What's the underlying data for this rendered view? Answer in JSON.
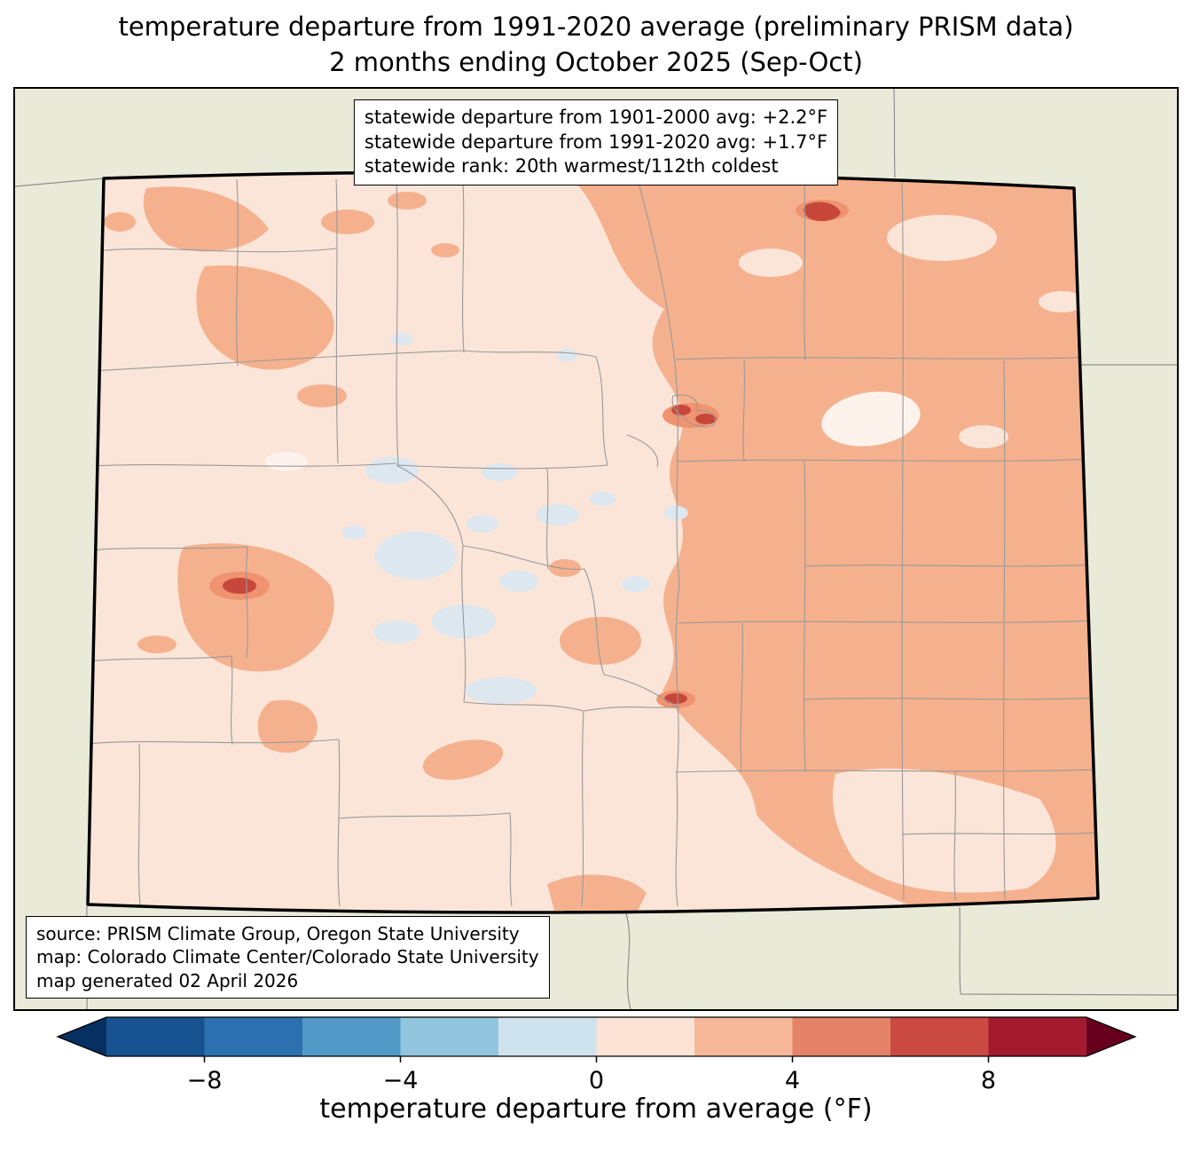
{
  "title": {
    "line1": "temperature departure from 1991-2020 average (preliminary PRISM data)",
    "line2": "2 months ending October 2025 (Sep-Oct)"
  },
  "stats_box": {
    "lines": [
      "statewide departure from 1901-2000 avg: +2.2°F",
      "statewide departure from 1991-2020 avg: +1.7°F",
      "statewide rank: 20th warmest/112th coldest"
    ]
  },
  "source_box": {
    "lines": [
      "source: PRISM Climate Group, Oregon State University",
      "map: Colorado Climate Center/Colorado State University",
      "map generated 02 April 2026"
    ]
  },
  "colorbar": {
    "label": "temperature departure from average (°F)",
    "ticks": [
      "−8",
      "−4",
      "0",
      "4",
      "8"
    ],
    "tick_values": [
      -8,
      -4,
      0,
      4,
      8
    ],
    "range": [
      -10,
      10
    ],
    "segment_colors": [
      "#175290",
      "#2d70b0",
      "#5199c6",
      "#92c5de",
      "#cfe3ef",
      "#fbe3d6",
      "#f7b799",
      "#e58368",
      "#cb4a42",
      "#a31a2e"
    ],
    "arrow_left_color": "#053061",
    "arrow_right_color": "#67001f"
  },
  "map": {
    "region": "Colorado",
    "description": "PRISM temperature anomaly choropleth with county boundaries; mostly +0 to +2°F statewide, +2 to +4°F across the eastern plains and northwest patches, small hot spots near Denver and the west-central mountains"
  },
  "theme": {
    "outside": "#e9ead8",
    "state_base": "#fbe5d8",
    "warm": "#f5b18e",
    "warm2": "#ef9371",
    "hot": "#c8473b",
    "cool": "#dce7f0",
    "white_patch": "#fdf3ec",
    "county_line": "#999999",
    "neighbor_line": "#8f8f8f",
    "state_border": "#000000"
  }
}
